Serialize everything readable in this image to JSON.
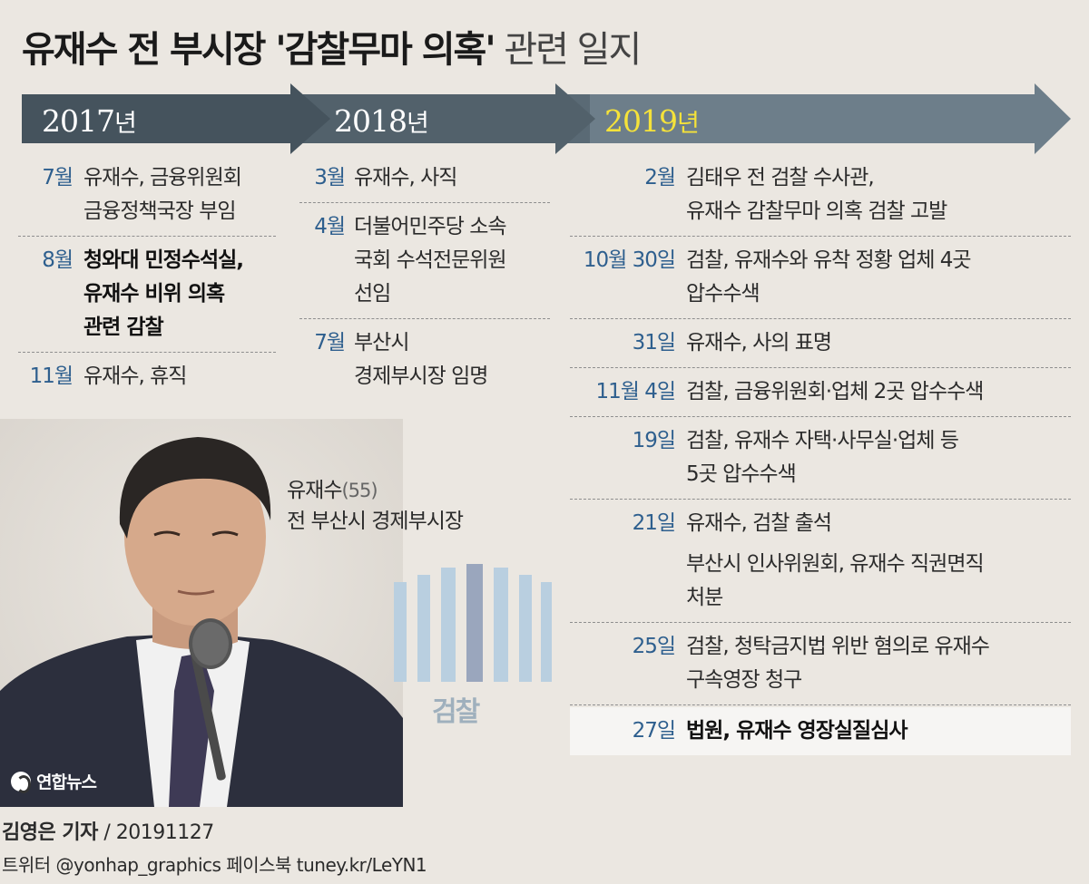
{
  "header": {
    "title_bold": "유재수 전 부시장 '감찰무마 의혹'",
    "title_light": " 관련 일지"
  },
  "years": [
    {
      "year": "2017",
      "unit": "년"
    },
    {
      "year": "2018",
      "unit": "년"
    },
    {
      "year": "2019",
      "unit": "년"
    }
  ],
  "colors": {
    "arrow": "#6d7e8a",
    "arrow_dark": "#45535d",
    "year_text": "#ffffff",
    "year_highlight": "#f5e23a",
    "month": "#2e5f8e",
    "background": "#ebe7e1"
  },
  "events_2017": [
    {
      "month": "7월",
      "text": "유재수, 금융위원회\n금융정책국장 부임"
    },
    {
      "month": "8월",
      "text": "청와대 민정수석실,\n유재수 비위 의혹\n관련 감찰"
    },
    {
      "month": "11월",
      "text": "유재수, 휴직"
    }
  ],
  "events_2018": [
    {
      "month": "3월",
      "text": "유재수, 사직"
    },
    {
      "month": "4월",
      "text": "더불어민주당 소속\n국회 수석전문위원\n선임"
    },
    {
      "month": "7월",
      "text": "부산시\n경제부시장 임명"
    }
  ],
  "events_2019": [
    {
      "date": "2월",
      "text": "김태우 전 검찰 수사관,\n유재수 감찰무마 의혹 검찰 고발"
    },
    {
      "date": "10월 30일",
      "text": "검찰, 유재수와 유착 정황 업체 4곳\n압수수색"
    },
    {
      "date": "31일",
      "text": "유재수, 사의 표명"
    },
    {
      "date": "11월 4일",
      "text": "검찰, 금융위원회·업체 2곳 압수수색"
    },
    {
      "date": "19일",
      "text": "검찰, 유재수 자택·사무실·업체 등\n5곳 압수수색"
    },
    {
      "date": "21일",
      "text": "유재수, 검찰 출석"
    },
    {
      "date": "",
      "text": "부산시 인사위원회, 유재수 직권면직\n처분"
    },
    {
      "date": "25일",
      "text": "검찰, 청탁금지법 위반 혐의로 유재수\n구속영장 청구"
    },
    {
      "date": "27일",
      "text": "법원, 유재수 영장실질심사"
    }
  ],
  "profile": {
    "name": "유재수",
    "age": "(55)",
    "position": "전 부산시 경제부시장"
  },
  "emblem": {
    "label": "검찰"
  },
  "logo": {
    "text": "연합뉴스"
  },
  "credit": {
    "reporter": "김영은 기자",
    "date": " / 20191127",
    "social": "트위터 @yonhap_graphics  페이스북 tuney.kr/LeYN1"
  }
}
